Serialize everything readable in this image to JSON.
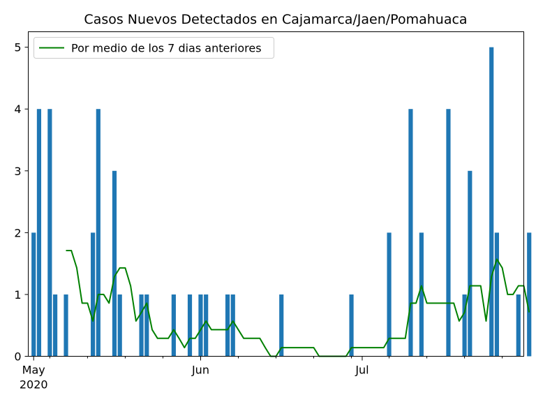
{
  "chart_data": {
    "type": "bar",
    "title": "Casos Nuevos Detectados en Cajamarca/Jaen/Pomahuaca",
    "xlabel": "",
    "ylabel": "",
    "ylim": [
      0,
      5.25
    ],
    "y_ticks": [
      "0",
      "1",
      "2",
      "3",
      "4",
      "5"
    ],
    "x_ticks": [
      {
        "day": 0,
        "label": "May",
        "sublabel": "2020"
      },
      {
        "day": 31,
        "label": "Jun",
        "sublabel": ""
      },
      {
        "day": 61,
        "label": "Jul",
        "sublabel": ""
      }
    ],
    "x_range_days": [
      -1,
      91
    ],
    "bar_color": "#1f77b4",
    "line_color": "#008000",
    "legend_position": "upper-left",
    "series": [
      {
        "name": "",
        "type": "bar",
        "points": [
          [
            0,
            2
          ],
          [
            1,
            4
          ],
          [
            3,
            4
          ],
          [
            4,
            1
          ],
          [
            6,
            1
          ],
          [
            11,
            2
          ],
          [
            12,
            4
          ],
          [
            15,
            3
          ],
          [
            16,
            1
          ],
          [
            20,
            1
          ],
          [
            21,
            1
          ],
          [
            26,
            1
          ],
          [
            29,
            1
          ],
          [
            31,
            1
          ],
          [
            32,
            1
          ],
          [
            36,
            1
          ],
          [
            37,
            1
          ],
          [
            46,
            1
          ],
          [
            59,
            1
          ],
          [
            66,
            2
          ],
          [
            70,
            4
          ],
          [
            72,
            2
          ],
          [
            77,
            4
          ],
          [
            80,
            1
          ],
          [
            81,
            3
          ],
          [
            85,
            5
          ],
          [
            86,
            2
          ],
          [
            90,
            1
          ],
          [
            92,
            2
          ]
        ]
      },
      {
        "name": "Por medio de los 7 dias anteriores",
        "type": "line",
        "points": [
          [
            6,
            1.71
          ],
          [
            7,
            1.71
          ],
          [
            8,
            1.43
          ],
          [
            9,
            0.86
          ],
          [
            10,
            0.86
          ],
          [
            11,
            0.57
          ],
          [
            12,
            1.0
          ],
          [
            13,
            1.0
          ],
          [
            14,
            0.86
          ],
          [
            15,
            1.29
          ],
          [
            16,
            1.43
          ],
          [
            17,
            1.43
          ],
          [
            18,
            1.14
          ],
          [
            19,
            0.57
          ],
          [
            20,
            0.71
          ],
          [
            21,
            0.86
          ],
          [
            22,
            0.43
          ],
          [
            23,
            0.29
          ],
          [
            24,
            0.29
          ],
          [
            25,
            0.29
          ],
          [
            26,
            0.43
          ],
          [
            27,
            0.29
          ],
          [
            28,
            0.14
          ],
          [
            29,
            0.29
          ],
          [
            30,
            0.29
          ],
          [
            31,
            0.43
          ],
          [
            32,
            0.57
          ],
          [
            33,
            0.43
          ],
          [
            34,
            0.43
          ],
          [
            35,
            0.43
          ],
          [
            36,
            0.43
          ],
          [
            37,
            0.57
          ],
          [
            38,
            0.43
          ],
          [
            39,
            0.29
          ],
          [
            40,
            0.29
          ],
          [
            41,
            0.29
          ],
          [
            42,
            0.29
          ],
          [
            43,
            0.14
          ],
          [
            44,
            0.0
          ],
          [
            45,
            0.0
          ],
          [
            46,
            0.14
          ],
          [
            47,
            0.14
          ],
          [
            48,
            0.14
          ],
          [
            49,
            0.14
          ],
          [
            50,
            0.14
          ],
          [
            51,
            0.14
          ],
          [
            52,
            0.14
          ],
          [
            53,
            0.0
          ],
          [
            54,
            0.0
          ],
          [
            55,
            0.0
          ],
          [
            56,
            0.0
          ],
          [
            57,
            0.0
          ],
          [
            58,
            0.0
          ],
          [
            59,
            0.14
          ],
          [
            60,
            0.14
          ],
          [
            61,
            0.14
          ],
          [
            62,
            0.14
          ],
          [
            63,
            0.14
          ],
          [
            64,
            0.14
          ],
          [
            65,
            0.14
          ],
          [
            66,
            0.29
          ],
          [
            67,
            0.29
          ],
          [
            68,
            0.29
          ],
          [
            69,
            0.29
          ],
          [
            70,
            0.86
          ],
          [
            71,
            0.86
          ],
          [
            72,
            1.14
          ],
          [
            73,
            0.86
          ],
          [
            74,
            0.86
          ],
          [
            75,
            0.86
          ],
          [
            76,
            0.86
          ],
          [
            77,
            0.86
          ],
          [
            78,
            0.86
          ],
          [
            79,
            0.57
          ],
          [
            80,
            0.71
          ],
          [
            81,
            1.14
          ],
          [
            82,
            1.14
          ],
          [
            83,
            1.14
          ],
          [
            84,
            0.57
          ],
          [
            85,
            1.29
          ],
          [
            86,
            1.57
          ],
          [
            87,
            1.43
          ],
          [
            88,
            1.0
          ],
          [
            89,
            1.0
          ],
          [
            90,
            1.14
          ],
          [
            91,
            1.14
          ],
          [
            92,
            0.71
          ]
        ]
      }
    ]
  }
}
